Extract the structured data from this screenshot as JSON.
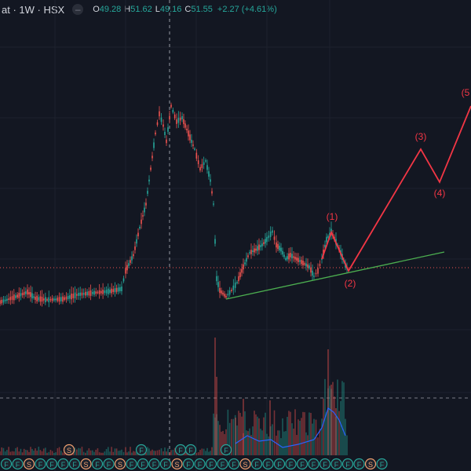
{
  "header": {
    "symbol": "at · 1W · HSX",
    "menu_icon": "minus-icon",
    "o_label": "O",
    "o_value": "49.28",
    "h_label": "H",
    "h_value": "51.62",
    "l_label": "L",
    "l_value": "49.16",
    "c_label": "C",
    "c_value": "51.55",
    "change": "+2.27 (+4.61%)"
  },
  "wave_labels": [
    "(1)",
    "(2)",
    "(3)",
    "(4)",
    "(5"
  ],
  "event_badges": {
    "letters": [
      "F",
      "F",
      "S",
      "F",
      "F",
      "F",
      "F",
      "S",
      "F",
      "F",
      "S",
      "F",
      "F",
      "F",
      "F",
      "S",
      "F",
      "F",
      "F",
      "F",
      "F",
      "S",
      "F",
      "F",
      "F",
      "F",
      "F",
      "F",
      "F",
      "F",
      "F",
      "F",
      "S",
      "F"
    ],
    "raised": [
      [
        "S",
        88,
        573
      ],
      [
        "F",
        180,
        573
      ],
      [
        "F",
        230,
        573
      ],
      [
        "F",
        243,
        573
      ],
      [
        "F",
        288,
        573
      ]
    ]
  },
  "colors": {
    "background": "#131722",
    "up": "#26a69a",
    "down": "#ef5350",
    "wave": "#f23645",
    "trendline": "#4caf50",
    "volume_line": "#2962ff",
    "crosshair": "#9598a1"
  },
  "chart_data": {
    "type": "candlestick",
    "timeframe": "1W",
    "exchange": "HSX",
    "last": {
      "open": 49.28,
      "high": 51.62,
      "low": 49.16,
      "close": 51.55,
      "change": 2.27,
      "change_pct": 4.61
    },
    "elliott_wave": [
      "(1)",
      "(2)",
      "(3)",
      "(4)",
      "(5)"
    ],
    "series_shape": "flat base, sharp rally to peak, collapse, consolidation with rising support line, projected 5-wave advance"
  }
}
